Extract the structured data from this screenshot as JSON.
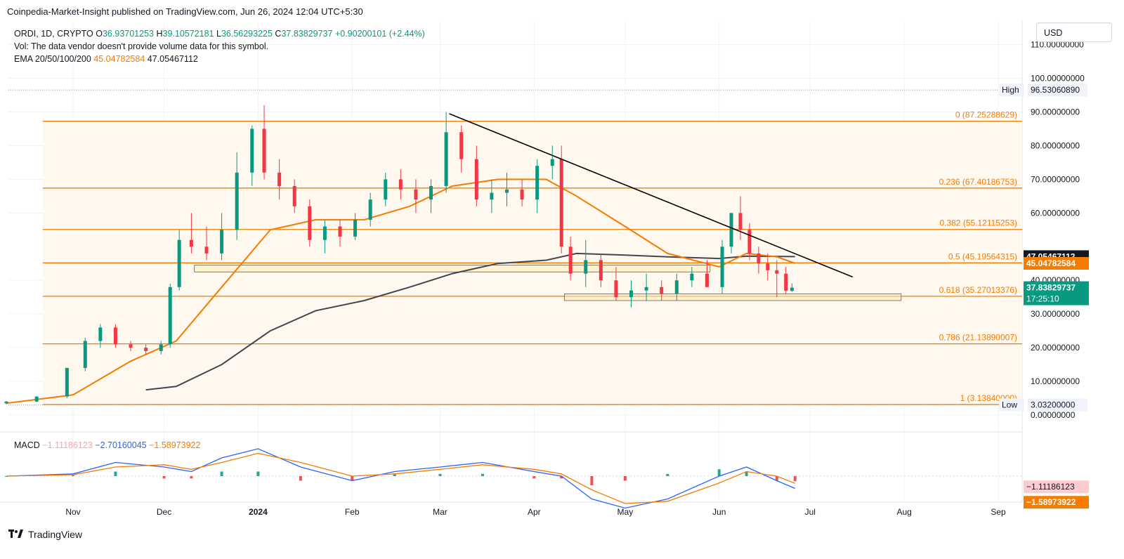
{
  "header": {
    "publisher": "Coinpedia-Market-Insight published on TradingView.com, Jun 26, 2024 12:04 UTC+5:30"
  },
  "legend": {
    "symbol": "ORDI, 1D, CRYPTO",
    "o_label": "O",
    "o_value": "36.93701253",
    "h_label": "H",
    "h_value": "39.10572181",
    "l_label": "L",
    "l_value": "36.56293225",
    "c_label": "C",
    "c_value": "37.83829737",
    "change": "+0.90200101 (+2.44%)",
    "vol_line": "Vol: The data vendor doesn't provide volume data for this symbol.",
    "ema_label": "EMA 20/50/100/200",
    "ema_value_1": "45.04782584",
    "ema_value_2": "47.05467112"
  },
  "currency_button": "USD",
  "macd_legend": {
    "label": "MACD",
    "v1": "−1.11186123",
    "v2": "−2.70160045",
    "v3": "−1.58973922"
  },
  "footer": {
    "brand": "TradingView"
  },
  "colors": {
    "up": "#089981",
    "down": "#f23645",
    "ema_orange": "#f57c00",
    "ema_dark": "#434651",
    "fib": "#f57c00",
    "fib_fill": "#fff8ee",
    "trendline": "#000000",
    "macd_line": "#2962ff",
    "signal_line": "#f57c00"
  },
  "chart_data": {
    "type": "candlestick",
    "symbol": "ORDI",
    "timeframe": "1D",
    "y_axis_labels": [
      "110.00000000",
      "100.00000000",
      "90.00000000",
      "80.00000000",
      "70.00000000",
      "60.00000000",
      "40.00000000",
      "30.00000000",
      "20.00000000",
      "10.00000000",
      "0.00000000"
    ],
    "y_axis_values": [
      110,
      100,
      90,
      80,
      70,
      60,
      40,
      30,
      20,
      10,
      0
    ],
    "ylim": [
      -5,
      117
    ],
    "x_axis_labels": [
      "Nov",
      "Dec",
      "2024",
      "Feb",
      "Mar",
      "Apr",
      "May",
      "Jun",
      "Jul",
      "Aug",
      "Sep"
    ],
    "x_axis_dates": [
      "2023-11-01",
      "2023-12-01",
      "2024-01-01",
      "2024-02-01",
      "2024-03-01",
      "2024-04-01",
      "2024-05-01",
      "2024-06-01",
      "2024-07-01",
      "2024-08-01",
      "2024-09-01"
    ],
    "high_marker": {
      "label": "High",
      "value": "96.53060890",
      "price": 96.53
    },
    "low_marker": {
      "label": "Low",
      "value": "3.03200000",
      "price": 3.03
    },
    "fib_levels": [
      {
        "ratio": "0",
        "label": "0 (87.25288629)",
        "price": 87.25288629
      },
      {
        "ratio": "0.236",
        "label": "0.236 (67.40186753)",
        "price": 67.40186753
      },
      {
        "ratio": "0.382",
        "label": "0.382 (55.12115253)",
        "price": 55.12115253
      },
      {
        "ratio": "0.5",
        "label": "0.5 (45.19564315)",
        "price": 45.19564315
      },
      {
        "ratio": "0.618",
        "label": "0.618 (35.27013376)",
        "price": 35.27013376
      },
      {
        "ratio": "0.786",
        "label": "0.786 (21.13890007)",
        "price": 21.13890007
      },
      {
        "ratio": "1",
        "label": "1 (3.13840000)",
        "price": 3.1384
      }
    ],
    "price_badges": [
      {
        "name": "ema-200-badge",
        "value": "47.05467112",
        "price": 47.05,
        "bg": "#131722",
        "fg": "#ffffff"
      },
      {
        "name": "ema-50-badge",
        "value": "45.04782584",
        "price": 45.05,
        "bg": "#f57c00",
        "fg": "#ffffff"
      },
      {
        "name": "last-price-badge",
        "value": "37.83829737",
        "countdown": "17:25:10",
        "price": 37.84,
        "bg": "#089981",
        "fg": "#ffffff"
      }
    ],
    "trendline": {
      "from": [
        "2024-03-04",
        89.5
      ],
      "to": [
        "2024-07-15",
        41.0
      ]
    },
    "support_zones": [
      {
        "from": "2023-12-11",
        "to": "2024-05-29",
        "low": 42.5,
        "high": 44.5
      },
      {
        "from": "2024-04-11",
        "to": "2024-07-31",
        "low": 34.0,
        "high": 36.0
      }
    ],
    "series": [
      {
        "name": "ORDI",
        "type": "candlestick",
        "x": [
          "2023-10-10",
          "2023-10-20",
          "2023-10-30",
          "2023-11-05",
          "2023-11-10",
          "2023-11-15",
          "2023-11-20",
          "2023-11-25",
          "2023-11-30",
          "2023-12-03",
          "2023-12-06",
          "2023-12-10",
          "2023-12-15",
          "2023-12-20",
          "2023-12-25",
          "2023-12-30",
          "2024-01-03",
          "2024-01-08",
          "2024-01-13",
          "2024-01-18",
          "2024-01-23",
          "2024-01-28",
          "2024-02-02",
          "2024-02-07",
          "2024-02-12",
          "2024-02-17",
          "2024-02-22",
          "2024-02-27",
          "2024-03-03",
          "2024-03-08",
          "2024-03-13",
          "2024-03-18",
          "2024-03-23",
          "2024-03-28",
          "2024-04-02",
          "2024-04-07",
          "2024-04-10",
          "2024-04-13",
          "2024-04-18",
          "2024-04-23",
          "2024-04-28",
          "2024-05-03",
          "2024-05-08",
          "2024-05-13",
          "2024-05-18",
          "2024-05-23",
          "2024-05-28",
          "2024-06-02",
          "2024-06-05",
          "2024-06-08",
          "2024-06-11",
          "2024-06-14",
          "2024-06-17",
          "2024-06-20",
          "2024-06-23",
          "2024-06-25"
        ],
        "open": [
          3.5,
          4.0,
          5.5,
          14,
          22,
          26,
          21,
          20,
          19,
          21,
          38,
          52,
          50,
          48,
          55,
          72,
          85,
          72,
          68,
          62,
          52,
          56,
          53,
          58,
          64,
          70,
          67,
          64,
          68,
          84,
          76,
          64,
          66,
          67,
          64,
          74,
          76,
          50,
          42,
          46,
          40,
          35,
          37,
          38,
          36,
          40,
          42,
          38,
          50,
          60,
          55,
          48,
          45,
          43,
          42,
          36.9
        ],
        "high": [
          4.2,
          5.5,
          14,
          23,
          27,
          27,
          22,
          21,
          22,
          39,
          55,
          60,
          56,
          60,
          78,
          86,
          92,
          76,
          70,
          64,
          58,
          58,
          60,
          66,
          72,
          73,
          70,
          70,
          90,
          86,
          80,
          70,
          72,
          70,
          76,
          80,
          80,
          53,
          52,
          48,
          44,
          40,
          42,
          40,
          42,
          44,
          46,
          52,
          60,
          65,
          57,
          50,
          48,
          46,
          44,
          39.1
        ],
        "low": [
          3.2,
          3.8,
          5.0,
          13,
          20,
          20,
          19,
          18,
          18,
          20,
          37,
          48,
          46,
          46,
          52,
          68,
          70,
          64,
          60,
          50,
          48,
          50,
          52,
          56,
          62,
          64,
          60,
          60,
          66,
          72,
          62,
          60,
          62,
          62,
          60,
          70,
          48,
          40,
          38,
          38,
          34,
          32,
          34,
          34,
          34,
          38,
          38,
          36,
          48,
          52,
          46,
          42,
          40,
          35,
          36,
          36.56
        ],
        "close": [
          4.0,
          5.5,
          14,
          22,
          26,
          21,
          20,
          19,
          21,
          38,
          52,
          50,
          48,
          55,
          72,
          85,
          72,
          68,
          62,
          52,
          56,
          53,
          58,
          64,
          70,
          67,
          64,
          68,
          84,
          76,
          64,
          66,
          67,
          64,
          74,
          76,
          50,
          42,
          46,
          40,
          35,
          37,
          38,
          36,
          40,
          42,
          38,
          50,
          60,
          55,
          48,
          45,
          43,
          42,
          36.9,
          37.84
        ]
      },
      {
        "name": "EMA 50",
        "type": "line",
        "x": [
          "2023-10-10",
          "2023-11-01",
          "2023-11-20",
          "2023-12-05",
          "2023-12-20",
          "2024-01-05",
          "2024-01-20",
          "2024-02-05",
          "2024-02-20",
          "2024-03-05",
          "2024-03-20",
          "2024-04-05",
          "2024-04-15",
          "2024-05-01",
          "2024-05-15",
          "2024-06-01",
          "2024-06-10",
          "2024-06-20",
          "2024-06-26"
        ],
        "y": [
          3.5,
          6,
          16,
          22,
          38,
          55,
          58,
          58,
          62,
          68,
          70,
          70,
          65,
          56,
          48,
          44,
          48,
          47,
          45.05
        ]
      },
      {
        "name": "EMA 200",
        "type": "line",
        "x": [
          "2023-11-25",
          "2023-12-05",
          "2023-12-20",
          "2024-01-05",
          "2024-01-20",
          "2024-02-05",
          "2024-02-20",
          "2024-03-05",
          "2024-03-20",
          "2024-04-05",
          "2024-04-15",
          "2024-05-01",
          "2024-05-15",
          "2024-06-01",
          "2024-06-10",
          "2024-06-26"
        ],
        "y": [
          7.5,
          8.5,
          15,
          25,
          31,
          34,
          38,
          42,
          45,
          46,
          48,
          47.5,
          47,
          46.5,
          47.2,
          47.05
        ]
      }
    ],
    "macd": {
      "x": [
        "2023-10-10",
        "2023-11-01",
        "2023-11-15",
        "2023-12-01",
        "2023-12-10",
        "2023-12-20",
        "2024-01-01",
        "2024-01-15",
        "2024-02-01",
        "2024-02-15",
        "2024-03-01",
        "2024-03-15",
        "2024-04-01",
        "2024-04-10",
        "2024-04-20",
        "2024-05-01",
        "2024-05-15",
        "2024-06-01",
        "2024-06-10",
        "2024-06-20",
        "2024-06-26"
      ],
      "macd": [
        0,
        0.5,
        3,
        2,
        1,
        4,
        6,
        2,
        -1,
        1,
        2,
        3,
        1,
        0,
        -5,
        -7,
        -5,
        0,
        2,
        -1,
        -2.7
      ],
      "signal": [
        0,
        0.3,
        2,
        2.5,
        1.5,
        3,
        5,
        3,
        0,
        0.5,
        1.5,
        2.5,
        1.5,
        0.5,
        -3,
        -6,
        -5.5,
        -1.5,
        1,
        0,
        -1.59
      ],
      "histogram": [
        0,
        0.2,
        1,
        -0.5,
        -0.5,
        1,
        1,
        -1,
        -1,
        0.5,
        0.5,
        0.5,
        -0.5,
        -0.5,
        -2,
        -1,
        0.5,
        1.5,
        1,
        -1,
        -1.11
      ]
    }
  }
}
